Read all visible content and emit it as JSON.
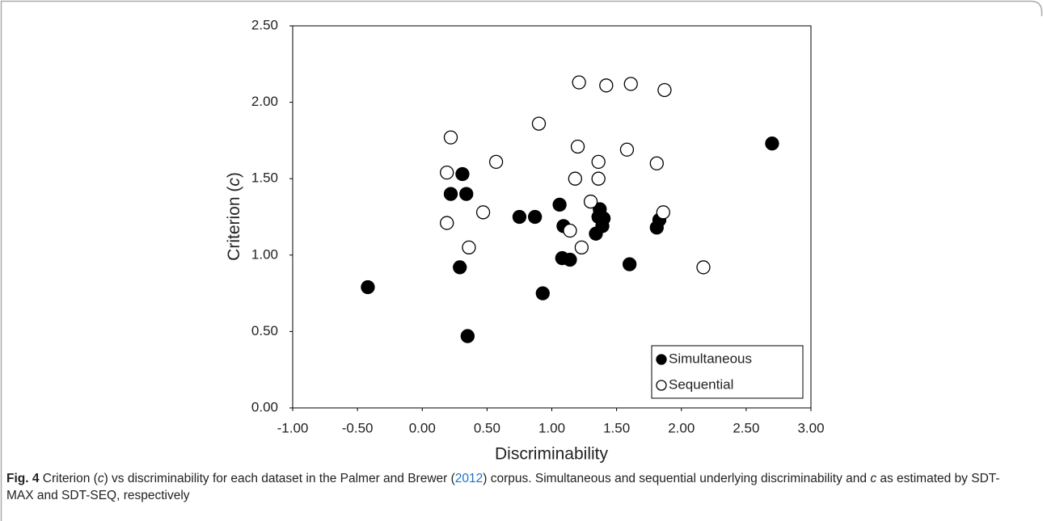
{
  "chart_data": {
    "type": "scatter",
    "xlabel": "Discriminability",
    "ylabel_parts": [
      "Criterion (",
      "c",
      ")"
    ],
    "xlim": [
      -1,
      3
    ],
    "ylim": [
      0,
      2.5
    ],
    "xticks": [
      {
        "value": -1,
        "label": "-1.00"
      },
      {
        "value": -0.5,
        "label": "-0.50"
      },
      {
        "value": 0,
        "label": "0.00"
      },
      {
        "value": 0.5,
        "label": "0.50"
      },
      {
        "value": 1,
        "label": "1.00"
      },
      {
        "value": 1.5,
        "label": "1.50"
      },
      {
        "value": 2,
        "label": "2.00"
      },
      {
        "value": 2.5,
        "label": "2.50"
      },
      {
        "value": 3,
        "label": "3.00"
      }
    ],
    "yticks": [
      {
        "value": 0,
        "label": "0.00"
      },
      {
        "value": 0.5,
        "label": "0.50"
      },
      {
        "value": 1,
        "label": "1.00"
      },
      {
        "value": 1.5,
        "label": "1.50"
      },
      {
        "value": 2,
        "label": "2.00"
      },
      {
        "value": 2.5,
        "label": "2.50"
      }
    ],
    "legend": "lower right",
    "series": [
      {
        "name": "Simultaneous",
        "color": "#000000",
        "filled": true,
        "x": [
          -0.42,
          0.31,
          0.22,
          0.34,
          0.29,
          0.35,
          0.75,
          0.87,
          0.93,
          1.06,
          1.09,
          1.08,
          1.14,
          1.37,
          1.36,
          1.4,
          1.39,
          1.34,
          1.6,
          1.83,
          1.81,
          2.7
        ],
        "values": [
          0.79,
          1.53,
          1.4,
          1.4,
          0.92,
          0.47,
          1.25,
          1.25,
          0.75,
          1.33,
          1.19,
          0.98,
          0.97,
          1.3,
          1.25,
          1.24,
          1.19,
          1.14,
          0.94,
          1.23,
          1.18,
          1.73
        ]
      },
      {
        "name": "Sequential",
        "color": "#000000",
        "filled": false,
        "x": [
          1.21,
          1.42,
          1.61,
          1.87,
          0.9,
          0.22,
          1.2,
          1.58,
          0.57,
          1.36,
          1.81,
          0.19,
          1.18,
          1.36,
          1.3,
          0.47,
          1.86,
          0.19,
          1.14,
          0.36,
          1.23,
          2.17
        ],
        "values": [
          2.13,
          2.11,
          2.12,
          2.08,
          1.86,
          1.77,
          1.71,
          1.69,
          1.61,
          1.61,
          1.6,
          1.54,
          1.5,
          1.5,
          1.35,
          1.28,
          1.28,
          1.21,
          1.16,
          1.05,
          1.05,
          0.92
        ]
      }
    ],
    "caption": {
      "label": "Fig. 4",
      "parts": [
        "Criterion (",
        "c",
        ") vs discriminability for each dataset in the Palmer and Brewer (",
        "2012",
        ") corpus. Simultaneous and sequential underlying discriminability and ",
        "c",
        " as estimated by SDT-MAX and SDT-SEQ, respectively"
      ]
    }
  }
}
